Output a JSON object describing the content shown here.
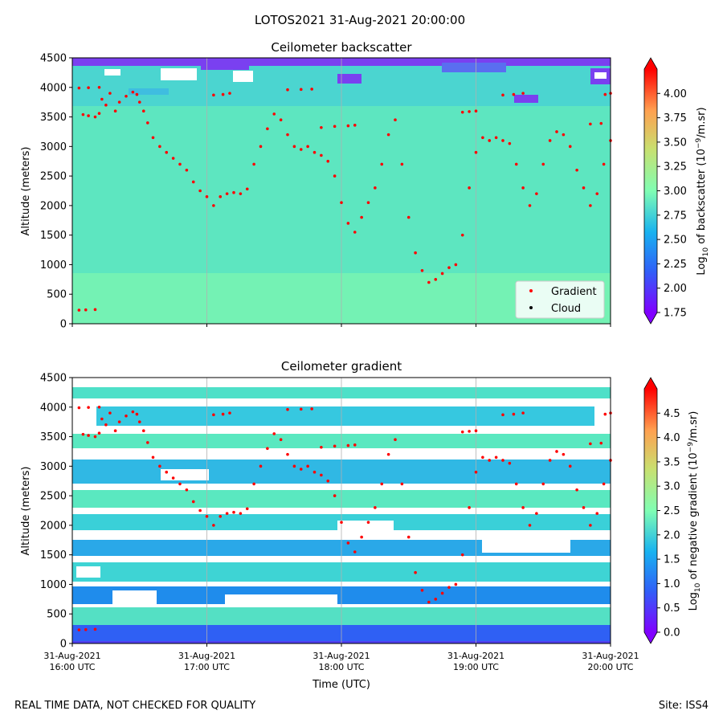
{
  "suptitle": "LOTOS2021 31-Aug-2021 20:00:00",
  "footer_left": "REAL TIME DATA, NOT CHECKED FOR QUALITY",
  "footer_right": "Site: ISS4",
  "xlabel": "Time (UTC)",
  "x_ticks": [
    {
      "date": "31-Aug-2021",
      "time": "16:00 UTC",
      "hour": 16
    },
    {
      "date": "31-Aug-2021",
      "time": "17:00 UTC",
      "hour": 17
    },
    {
      "date": "31-Aug-2021",
      "time": "18:00 UTC",
      "hour": 18
    },
    {
      "date": "31-Aug-2021",
      "time": "19:00 UTC",
      "hour": 19
    },
    {
      "date": "31-Aug-2021",
      "time": "20:00 UTC",
      "hour": 20
    }
  ],
  "chart_data": [
    {
      "type": "heatmap",
      "title": "Ceilometer backscatter",
      "ylabel": "Altitude (meters)",
      "xlim": [
        16,
        20
      ],
      "ylim": [
        0,
        4500
      ],
      "yticks": [
        0,
        500,
        1000,
        1500,
        2000,
        2500,
        3000,
        3500,
        4000,
        4500
      ],
      "grid": "vertical lines at x ticks",
      "colorbar": {
        "label_prefix": "Log",
        "label_sub": "10",
        "label_mid": " of backscatter (10",
        "label_sup": "−9",
        "label_suffix": "/m.sr)",
        "range": [
          1.75,
          4.25
        ],
        "ticks": [
          "1.75",
          "2.00",
          "2.25",
          "2.50",
          "2.75",
          "3.00",
          "3.25",
          "3.50",
          "3.75",
          "4.00"
        ],
        "colormap": "rainbow"
      },
      "legend": {
        "position": "lower-right",
        "entries": [
          {
            "label": "Gradient",
            "color": "#ff0000"
          },
          {
            "label": "Cloud",
            "color": "#000000"
          }
        ]
      }
    },
    {
      "type": "heatmap",
      "title": "Ceilometer gradient",
      "ylabel": "Altitude (meters)",
      "xlim": [
        16,
        20
      ],
      "ylim": [
        0,
        4500
      ],
      "yticks": [
        0,
        500,
        1000,
        1500,
        2000,
        2500,
        3000,
        3500,
        4000,
        4500
      ],
      "grid": "vertical lines at x ticks",
      "colorbar": {
        "label_prefix": "Log",
        "label_sub": "10",
        "label_mid": " of negative gradient (10",
        "label_sup": "−9",
        "label_suffix": "/m.sr)",
        "range": [
          0,
          5
        ],
        "ticks": [
          "0.0",
          "0.5",
          "1.0",
          "1.5",
          "2.0",
          "2.5",
          "3.0",
          "3.5",
          "4.0",
          "4.5"
        ],
        "colormap": "rainbow"
      }
    }
  ],
  "gradient_trace": [
    [
      16.05,
      230
    ],
    [
      16.1,
      235
    ],
    [
      16.17,
      240
    ],
    [
      16.05,
      3990
    ],
    [
      16.12,
      3995
    ],
    [
      16.2,
      4000
    ],
    [
      16.08,
      3540
    ],
    [
      16.12,
      3520
    ],
    [
      16.17,
      3500
    ],
    [
      16.2,
      3560
    ],
    [
      16.22,
      3800
    ],
    [
      16.25,
      3700
    ],
    [
      16.28,
      3900
    ],
    [
      16.32,
      3600
    ],
    [
      16.35,
      3750
    ],
    [
      16.4,
      3850
    ],
    [
      16.45,
      3920
    ],
    [
      16.48,
      3880
    ],
    [
      16.5,
      3750
    ],
    [
      16.53,
      3600
    ],
    [
      16.56,
      3400
    ],
    [
      16.6,
      3150
    ],
    [
      16.65,
      3000
    ],
    [
      16.7,
      2900
    ],
    [
      16.75,
      2800
    ],
    [
      16.8,
      2700
    ],
    [
      16.85,
      2600
    ],
    [
      16.9,
      2400
    ],
    [
      16.95,
      2250
    ],
    [
      17.0,
      2150
    ],
    [
      17.05,
      2000
    ],
    [
      17.1,
      2150
    ],
    [
      17.15,
      2200
    ],
    [
      17.2,
      2220
    ],
    [
      17.25,
      2200
    ],
    [
      17.3,
      2280
    ],
    [
      17.35,
      2700
    ],
    [
      17.4,
      3000
    ],
    [
      17.45,
      3300
    ],
    [
      17.5,
      3550
    ],
    [
      17.55,
      3450
    ],
    [
      17.6,
      3200
    ],
    [
      17.65,
      3000
    ],
    [
      17.7,
      2950
    ],
    [
      17.75,
      3000
    ],
    [
      17.8,
      2900
    ],
    [
      17.85,
      2850
    ],
    [
      17.9,
      2750
    ],
    [
      17.95,
      2500
    ],
    [
      18.0,
      2050
    ],
    [
      18.05,
      1700
    ],
    [
      18.1,
      1550
    ],
    [
      18.15,
      1800
    ],
    [
      18.2,
      2050
    ],
    [
      18.25,
      2300
    ],
    [
      18.3,
      2700
    ],
    [
      18.35,
      3200
    ],
    [
      18.4,
      3450
    ],
    [
      18.45,
      2700
    ],
    [
      18.5,
      1800
    ],
    [
      18.55,
      1200
    ],
    [
      18.6,
      900
    ],
    [
      18.65,
      700
    ],
    [
      18.7,
      750
    ],
    [
      18.75,
      850
    ],
    [
      18.8,
      950
    ],
    [
      18.85,
      1000
    ],
    [
      18.9,
      1500
    ],
    [
      18.95,
      2300
    ],
    [
      19.0,
      2900
    ],
    [
      19.05,
      3150
    ],
    [
      19.1,
      3100
    ],
    [
      19.15,
      3150
    ],
    [
      19.2,
      3100
    ],
    [
      19.25,
      3050
    ],
    [
      19.3,
      2700
    ],
    [
      19.35,
      2300
    ],
    [
      19.4,
      2000
    ],
    [
      19.45,
      2200
    ],
    [
      19.5,
      2700
    ],
    [
      19.55,
      3100
    ],
    [
      19.6,
      3250
    ],
    [
      19.65,
      3200
    ],
    [
      19.7,
      3000
    ],
    [
      19.75,
      2600
    ],
    [
      19.8,
      2300
    ],
    [
      19.85,
      2000
    ],
    [
      19.9,
      2200
    ],
    [
      19.95,
      2700
    ],
    [
      20.0,
      3100
    ],
    [
      17.05,
      3870
    ],
    [
      17.12,
      3880
    ],
    [
      17.17,
      3900
    ],
    [
      17.6,
      3960
    ],
    [
      17.7,
      3965
    ],
    [
      17.78,
      3970
    ],
    [
      17.85,
      3320
    ],
    [
      17.95,
      3340
    ],
    [
      18.05,
      3350
    ],
    [
      18.1,
      3360
    ],
    [
      18.9,
      3580
    ],
    [
      18.95,
      3590
    ],
    [
      19.0,
      3600
    ],
    [
      19.2,
      3870
    ],
    [
      19.28,
      3880
    ],
    [
      19.35,
      3900
    ],
    [
      19.85,
      3380
    ],
    [
      19.93,
      3390
    ],
    [
      19.96,
      3880
    ],
    [
      20.0,
      3900
    ]
  ]
}
